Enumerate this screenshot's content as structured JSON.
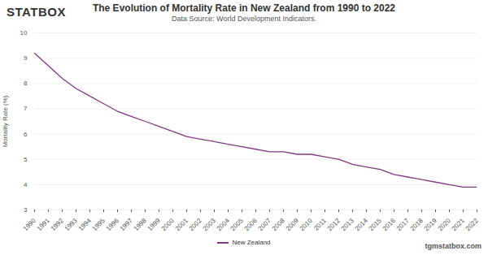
{
  "chart_data": {
    "type": "line",
    "title": "The Evolution of Mortality Rate in New Zealand from 1990 to 2022",
    "subtitle": "Data Source: World Development Indicators.",
    "brand": "STATBOX",
    "source_url": "tgmstatbox.com",
    "y_label": "Mortality Rate (%)",
    "x": [
      1990,
      1991,
      1992,
      1993,
      1994,
      1995,
      1996,
      1997,
      1998,
      1999,
      2000,
      2001,
      2002,
      2003,
      2004,
      2005,
      2006,
      2007,
      2008,
      2009,
      2010,
      2011,
      2012,
      2013,
      2014,
      2015,
      2016,
      2017,
      2018,
      2019,
      2020,
      2021,
      2022
    ],
    "series": [
      {
        "name": "New Zealand",
        "color": "#7b3b7d",
        "values": [
          9.2,
          8.7,
          8.2,
          7.8,
          7.5,
          7.2,
          6.9,
          6.7,
          6.5,
          6.3,
          6.1,
          5.9,
          5.8,
          5.7,
          5.6,
          5.5,
          5.4,
          5.3,
          5.3,
          5.2,
          5.2,
          5.1,
          5.0,
          4.8,
          4.7,
          4.6,
          4.4,
          4.3,
          4.2,
          4.1,
          4.0,
          3.9,
          3.9
        ]
      }
    ],
    "xlim": [
      1990,
      2022
    ],
    "xticks": [
      1990,
      1991,
      1992,
      1993,
      1994,
      1995,
      1996,
      1997,
      1998,
      1999,
      2000,
      2001,
      2002,
      2003,
      2004,
      2005,
      2006,
      2007,
      2008,
      2009,
      2010,
      2011,
      2012,
      2013,
      2014,
      2015,
      2016,
      2017,
      2018,
      2019,
      2020,
      2021,
      2022
    ],
    "ylim": [
      3,
      10
    ],
    "yticks": [
      3,
      4,
      5,
      6,
      7,
      8,
      9,
      10
    ],
    "grid": true,
    "legend": "bottom"
  }
}
